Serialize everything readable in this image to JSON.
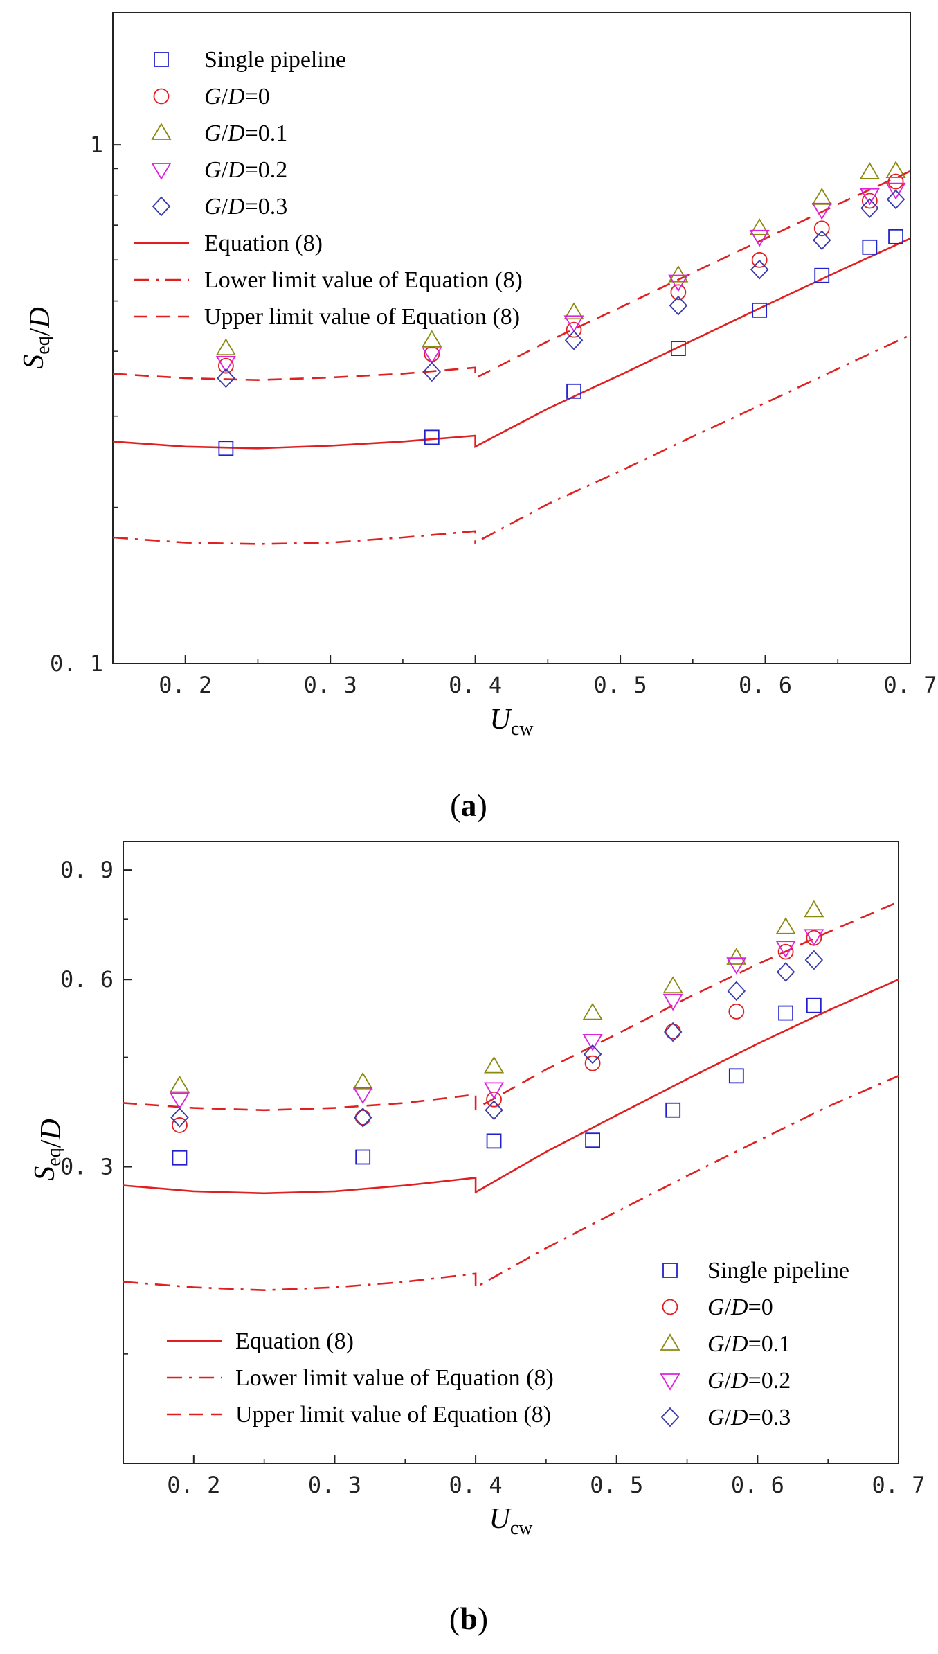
{
  "chart_data": [
    {
      "type": "scatter",
      "panel_label": "a",
      "xlabel": "U",
      "xlabel_sub": "cw",
      "ylabel": "S",
      "ylabel_sub": "eq",
      "ylabel_suffix": "/D",
      "xlim": [
        0.15,
        0.7
      ],
      "ylim": [
        0.1,
        1.8
      ],
      "yscale": "log",
      "x_ticks": [
        0.2,
        0.3,
        0.4,
        0.5,
        0.6,
        0.7
      ],
      "x_tick_labels": [
        "0. 2",
        "0. 3",
        "0. 4",
        "0. 5",
        "0. 6",
        "0. 7"
      ],
      "y_ticks": [
        0.1,
        1
      ],
      "y_tick_labels": [
        "0. 1",
        "1"
      ],
      "y_minor_ticks": [
        0.2,
        0.3,
        0.4,
        0.5,
        0.6,
        0.7,
        0.8,
        0.9
      ],
      "legend_position": "top-left",
      "legend_order": [
        "s0",
        "s1",
        "s2",
        "s3",
        "s4",
        "l0",
        "l1",
        "l2"
      ],
      "series": [
        {
          "id": "s0",
          "name": "Single pipeline",
          "marker": "square",
          "color": "#2222cc",
          "name_parts": [
            {
              "t": "Single pipeline"
            }
          ],
          "x": [
            0.228,
            0.37,
            0.468,
            0.54,
            0.596,
            0.639,
            0.672,
            0.69
          ],
          "y": [
            0.26,
            0.273,
            0.335,
            0.405,
            0.48,
            0.56,
            0.635,
            0.665
          ]
        },
        {
          "id": "s1",
          "name": "G/D=0",
          "marker": "circle",
          "color": "#e02020",
          "name_parts": [
            {
              "t": "G",
              "i": true
            },
            {
              "t": "/"
            },
            {
              "t": "D",
              "i": true
            },
            {
              "t": "=0"
            }
          ],
          "x": [
            0.228,
            0.37,
            0.468,
            0.54,
            0.596,
            0.639,
            0.672,
            0.69
          ],
          "y": [
            0.375,
            0.395,
            0.44,
            0.52,
            0.6,
            0.69,
            0.78,
            0.85
          ]
        },
        {
          "id": "s2",
          "name": "G/D=0.1",
          "marker": "triangle-up",
          "color": "#8a8a10",
          "name_parts": [
            {
              "t": "G",
              "i": true
            },
            {
              "t": "/"
            },
            {
              "t": "D",
              "i": true
            },
            {
              "t": "=0.1"
            }
          ],
          "x": [
            0.228,
            0.37,
            0.468,
            0.54,
            0.596,
            0.639,
            0.672,
            0.69
          ],
          "y": [
            0.405,
            0.42,
            0.475,
            0.56,
            0.69,
            0.79,
            0.885,
            0.89
          ]
        },
        {
          "id": "s3",
          "name": "G/D=0.2",
          "marker": "triangle-down",
          "color": "#e020e0",
          "name_parts": [
            {
              "t": "G",
              "i": true
            },
            {
              "t": "/"
            },
            {
              "t": "D",
              "i": true
            },
            {
              "t": "=0.2"
            }
          ],
          "x": [
            0.228,
            0.37,
            0.468,
            0.54,
            0.596,
            0.639,
            0.672,
            0.69
          ],
          "y": [
            0.38,
            0.395,
            0.455,
            0.545,
            0.665,
            0.75,
            0.8,
            0.82
          ]
        },
        {
          "id": "s4",
          "name": "G/D=0.3",
          "marker": "diamond",
          "color": "#3a3aaa",
          "name_parts": [
            {
              "t": "G",
              "i": true
            },
            {
              "t": "/"
            },
            {
              "t": "D",
              "i": true
            },
            {
              "t": "=0.3"
            }
          ],
          "x": [
            0.228,
            0.37,
            0.468,
            0.54,
            0.596,
            0.639,
            0.672,
            0.69
          ],
          "y": [
            0.355,
            0.365,
            0.42,
            0.49,
            0.575,
            0.655,
            0.755,
            0.785
          ]
        }
      ],
      "lines": [
        {
          "id": "l0",
          "name": "Equation (8)",
          "dash": "solid",
          "color": "#e02020",
          "x": [
            0.15,
            0.2,
            0.25,
            0.3,
            0.35,
            0.4,
            0.4,
            0.45,
            0.5,
            0.55,
            0.6,
            0.65,
            0.7
          ],
          "y": [
            0.268,
            0.262,
            0.26,
            0.263,
            0.268,
            0.275,
            0.262,
            0.31,
            0.36,
            0.42,
            0.49,
            0.57,
            0.66
          ]
        },
        {
          "id": "l1",
          "name": "Lower limit value of Equation (8)",
          "dash": "dashdot",
          "color": "#e02020",
          "x": [
            0.15,
            0.2,
            0.25,
            0.3,
            0.35,
            0.4,
            0.4,
            0.45,
            0.5,
            0.55,
            0.6,
            0.65,
            0.7
          ],
          "y": [
            0.175,
            0.171,
            0.17,
            0.171,
            0.175,
            0.18,
            0.171,
            0.203,
            0.235,
            0.274,
            0.318,
            0.37,
            0.43
          ]
        },
        {
          "id": "l2",
          "name": "Upper limit value of Equation (8)",
          "dash": "dashed",
          "color": "#e02020",
          "x": [
            0.15,
            0.2,
            0.25,
            0.3,
            0.35,
            0.4,
            0.4,
            0.45,
            0.5,
            0.55,
            0.6,
            0.65,
            0.7
          ],
          "y": [
            0.362,
            0.355,
            0.352,
            0.356,
            0.362,
            0.372,
            0.355,
            0.418,
            0.486,
            0.567,
            0.66,
            0.768,
            0.89
          ]
        }
      ]
    },
    {
      "type": "scatter",
      "panel_label": "b",
      "xlabel": "U",
      "xlabel_sub": "cw",
      "ylabel": "S",
      "ylabel_sub": "eq",
      "ylabel_suffix": "/D",
      "xlim": [
        0.15,
        0.7
      ],
      "ylim": [
        0.1,
        1.0
      ],
      "yscale": "log",
      "x_ticks": [
        0.2,
        0.3,
        0.4,
        0.5,
        0.6,
        0.7
      ],
      "x_tick_labels": [
        "0. 2",
        "0. 3",
        "0. 4",
        "0. 5",
        "0. 6",
        "0. 7"
      ],
      "y_ticks": [
        0.3,
        0.6,
        0.9
      ],
      "y_tick_labels": [
        "0. 3",
        "0. 6",
        "0. 9"
      ],
      "y_minor_ticks": [
        0.15,
        0.45,
        0.75
      ],
      "legend_position": "bottom",
      "legend_order": [
        "l0",
        "l1",
        "l2",
        "s0",
        "s1",
        "s2",
        "s3",
        "s4"
      ],
      "series": [
        {
          "id": "s0",
          "name": "Single pipeline",
          "marker": "square",
          "color": "#2222cc",
          "name_parts": [
            {
              "t": "Single pipeline"
            }
          ],
          "x": [
            0.19,
            0.32,
            0.413,
            0.483,
            0.54,
            0.585,
            0.62,
            0.64
          ],
          "y": [
            0.31,
            0.311,
            0.33,
            0.331,
            0.37,
            0.42,
            0.53,
            0.545
          ]
        },
        {
          "id": "s1",
          "name": "G/D=0",
          "marker": "circle",
          "color": "#e02020",
          "name_parts": [
            {
              "t": "G",
              "i": true
            },
            {
              "t": "/"
            },
            {
              "t": "D",
              "i": true
            },
            {
              "t": "=0"
            }
          ],
          "x": [
            0.19,
            0.32,
            0.413,
            0.483,
            0.54,
            0.585,
            0.62,
            0.64
          ],
          "y": [
            0.35,
            0.36,
            0.385,
            0.44,
            0.495,
            0.533,
            0.665,
            0.7
          ]
        },
        {
          "id": "s2",
          "name": "G/D=0.1",
          "marker": "triangle-up",
          "color": "#8a8a10",
          "name_parts": [
            {
              "t": "G",
              "i": true
            },
            {
              "t": "/"
            },
            {
              "t": "D",
              "i": true
            },
            {
              "t": "=0.1"
            }
          ],
          "x": [
            0.19,
            0.32,
            0.413,
            0.483,
            0.54,
            0.585,
            0.62,
            0.64
          ],
          "y": [
            0.405,
            0.41,
            0.435,
            0.53,
            0.585,
            0.65,
            0.728,
            0.775
          ]
        },
        {
          "id": "s3",
          "name": "G/D=0.2",
          "marker": "triangle-down",
          "color": "#e020e0",
          "name_parts": [
            {
              "t": "G",
              "i": true
            },
            {
              "t": "/"
            },
            {
              "t": "D",
              "i": true
            },
            {
              "t": "=0.2"
            }
          ],
          "x": [
            0.19,
            0.32,
            0.413,
            0.483,
            0.54,
            0.585,
            0.62,
            0.64
          ],
          "y": [
            0.385,
            0.393,
            0.4,
            0.478,
            0.555,
            0.635,
            0.675,
            0.705
          ]
        },
        {
          "id": "s4",
          "name": "G/D=0.3",
          "marker": "diamond",
          "color": "#3a3aaa",
          "name_parts": [
            {
              "t": "G",
              "i": true
            },
            {
              "t": "/"
            },
            {
              "t": "D",
              "i": true
            },
            {
              "t": "=0.3"
            }
          ],
          "x": [
            0.19,
            0.32,
            0.413,
            0.483,
            0.54,
            0.585,
            0.62,
            0.64
          ],
          "y": [
            0.36,
            0.36,
            0.37,
            0.455,
            0.494,
            0.575,
            0.617,
            0.645
          ]
        }
      ],
      "lines": [
        {
          "id": "l0",
          "name": "Equation (8)",
          "dash": "solid",
          "color": "#e02020",
          "x": [
            0.15,
            0.2,
            0.25,
            0.3,
            0.35,
            0.4,
            0.4,
            0.45,
            0.5,
            0.55,
            0.6,
            0.65,
            0.7
          ],
          "y": [
            0.28,
            0.274,
            0.272,
            0.274,
            0.28,
            0.288,
            0.273,
            0.317,
            0.363,
            0.415,
            0.473,
            0.535,
            0.6
          ]
        },
        {
          "id": "l1",
          "name": "Lower limit value of Equation (8)",
          "dash": "dashdot",
          "color": "#e02020",
          "x": [
            0.15,
            0.2,
            0.25,
            0.3,
            0.35,
            0.4,
            0.4,
            0.45,
            0.5,
            0.55,
            0.6,
            0.65,
            0.7
          ],
          "y": [
            0.196,
            0.192,
            0.19,
            0.192,
            0.196,
            0.202,
            0.192,
            0.222,
            0.254,
            0.29,
            0.33,
            0.375,
            0.42
          ]
        },
        {
          "id": "l2",
          "name": "Upper limit value of Equation (8)",
          "dash": "dashed",
          "color": "#e02020",
          "x": [
            0.15,
            0.2,
            0.25,
            0.3,
            0.35,
            0.4,
            0.4,
            0.45,
            0.5,
            0.55,
            0.6,
            0.65,
            0.7
          ],
          "y": [
            0.38,
            0.373,
            0.37,
            0.373,
            0.38,
            0.392,
            0.372,
            0.43,
            0.49,
            0.56,
            0.635,
            0.715,
            0.8
          ]
        }
      ]
    }
  ]
}
